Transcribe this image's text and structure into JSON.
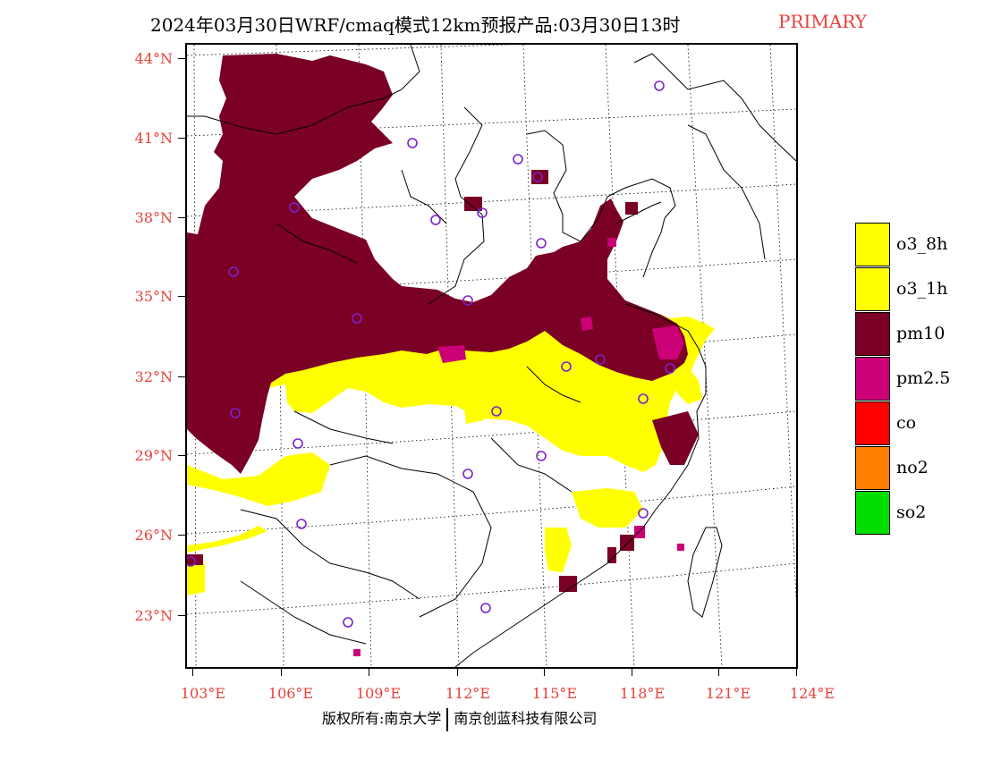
{
  "title": {
    "main": "2024年03月30日WRF/cmaq模式12km预报产品:03月30日13时",
    "tag": "PRIMARY"
  },
  "map": {
    "lat_labels": [
      "44°N",
      "41°N",
      "38°N",
      "35°N",
      "32°N",
      "29°N",
      "26°N",
      "23°N"
    ],
    "lon_labels": [
      "103°E",
      "106°E",
      "109°E",
      "112°E",
      "115°E",
      "118°E",
      "121°E",
      "124°E"
    ],
    "colors": {
      "pm10": "#7a0026",
      "pm25": "#cc0077",
      "o3": "#ffff00",
      "station_marker": "#7b22cc",
      "border": "#000000"
    }
  },
  "legend": {
    "items": [
      {
        "label": "o3_8h",
        "color": "#ffff00"
      },
      {
        "label": "o3_1h",
        "color": "#ffff00"
      },
      {
        "label": "pm10",
        "color": "#7a0026"
      },
      {
        "label": "pm2.5",
        "color": "#cc0077"
      },
      {
        "label": "co",
        "color": "#ff0000"
      },
      {
        "label": "no2",
        "color": "#ff7f00"
      },
      {
        "label": "so2",
        "color": "#00dd00"
      }
    ]
  },
  "footer": {
    "left": "版权所有:南京大学",
    "right": "南京创蓝科技有限公司"
  }
}
